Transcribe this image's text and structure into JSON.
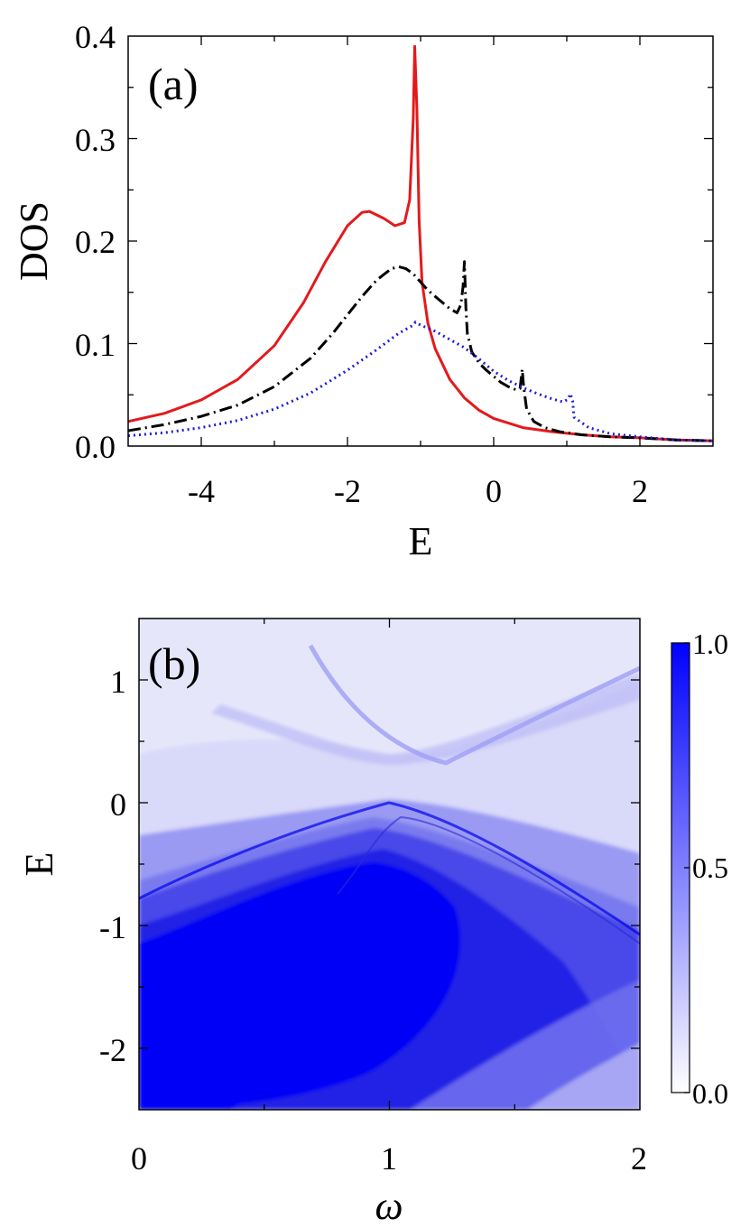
{
  "chart_data": [
    {
      "type": "line",
      "panel_label": "(a)",
      "xlabel": "E",
      "ylabel": "DOS",
      "xlim": [
        -5,
        3
      ],
      "ylim": [
        0,
        0.4
      ],
      "xticks": [
        -4,
        -2,
        0,
        2
      ],
      "xtick_labels": [
        "-4",
        "-2",
        "0",
        "2"
      ],
      "yticks": [
        0,
        0.1,
        0.2,
        0.3,
        0.4
      ],
      "ytick_labels": [
        "0.0",
        "0.1",
        "0.2",
        "0.3",
        "0.4"
      ],
      "grid": false,
      "series": [
        {
          "color": "#e31a1c",
          "style": "solid",
          "x": [
            -5,
            -4.5,
            -4,
            -3.5,
            -3,
            -2.6,
            -2.3,
            -2,
            -1.8,
            -1.7,
            -1.5,
            -1.35,
            -1.22,
            -1.15,
            -1.1,
            -1.08,
            -1.05,
            -1.02,
            -0.98,
            -0.9,
            -0.8,
            -0.6,
            -0.4,
            -0.2,
            0,
            0.4,
            0.8,
            1.2,
            1.6,
            2,
            2.5,
            3
          ],
          "y": [
            0.024,
            0.032,
            0.045,
            0.065,
            0.098,
            0.14,
            0.18,
            0.215,
            0.228,
            0.229,
            0.222,
            0.215,
            0.218,
            0.24,
            0.32,
            0.39,
            0.33,
            0.22,
            0.16,
            0.12,
            0.095,
            0.065,
            0.047,
            0.035,
            0.027,
            0.018,
            0.014,
            0.011,
            0.009,
            0.008,
            0.006,
            0.005
          ]
        },
        {
          "color": "#000000",
          "style": "dashdot",
          "x": [
            -5,
            -4.5,
            -4,
            -3.5,
            -3,
            -2.5,
            -2.2,
            -2,
            -1.8,
            -1.6,
            -1.4,
            -1.3,
            -1.2,
            -1.1,
            -1,
            -0.9,
            -0.8,
            -0.7,
            -0.6,
            -0.5,
            -0.45,
            -0.42,
            -0.4,
            -0.38,
            -0.36,
            -0.3,
            -0.2,
            -0.1,
            0,
            0.1,
            0.2,
            0.3,
            0.36,
            0.39,
            0.41,
            0.45,
            0.55,
            0.7,
            0.9,
            1.2,
            1.6,
            2,
            2.5,
            3
          ],
          "y": [
            0.015,
            0.021,
            0.029,
            0.04,
            0.058,
            0.086,
            0.11,
            0.128,
            0.146,
            0.162,
            0.173,
            0.175,
            0.173,
            0.168,
            0.16,
            0.152,
            0.146,
            0.14,
            0.134,
            0.13,
            0.138,
            0.155,
            0.18,
            0.135,
            0.11,
            0.092,
            0.081,
            0.074,
            0.068,
            0.062,
            0.058,
            0.055,
            0.056,
            0.075,
            0.058,
            0.036,
            0.024,
            0.018,
            0.014,
            0.011,
            0.009,
            0.008,
            0.006,
            0.005
          ]
        },
        {
          "color": "#1f1fd6",
          "style": "dotted",
          "x": [
            -5,
            -4.5,
            -4,
            -3.5,
            -3,
            -2.5,
            -2,
            -1.6,
            -1.3,
            -1.1,
            -1.07,
            -1.05,
            -1,
            -0.8,
            -0.6,
            -0.4,
            -0.2,
            0,
            0.2,
            0.4,
            0.6,
            0.8,
            0.95,
            1.02,
            1.05,
            1.08,
            1.1,
            1.3,
            1.6,
            2,
            2.5,
            3
          ],
          "y": [
            0.01,
            0.013,
            0.018,
            0.025,
            0.036,
            0.052,
            0.074,
            0.094,
            0.11,
            0.118,
            0.121,
            0.12,
            0.118,
            0.112,
            0.104,
            0.096,
            0.085,
            0.073,
            0.064,
            0.057,
            0.051,
            0.046,
            0.043,
            0.046,
            0.051,
            0.044,
            0.028,
            0.018,
            0.012,
            0.009,
            0.006,
            0.005
          ]
        }
      ]
    },
    {
      "type": "heatmap",
      "panel_label": "(b)",
      "xlabel": "ω",
      "ylabel": "E",
      "xlim": [
        0,
        2
      ],
      "ylim": [
        -2.5,
        1.5
      ],
      "xticks": [
        0,
        1,
        2
      ],
      "xtick_labels": [
        "0",
        "1",
        "2"
      ],
      "yticks": [
        -2,
        -1,
        0,
        1
      ],
      "ytick_labels": [
        "-2",
        "-1",
        "0",
        "1"
      ],
      "colorbar": {
        "min": 0,
        "max": 1,
        "ticks": [
          0,
          0.5,
          1
        ],
        "tick_labels": [
          "0.0",
          "0.5",
          "1.0"
        ],
        "color_low": "#ffffff",
        "color_high": "#0000ff"
      }
    }
  ]
}
